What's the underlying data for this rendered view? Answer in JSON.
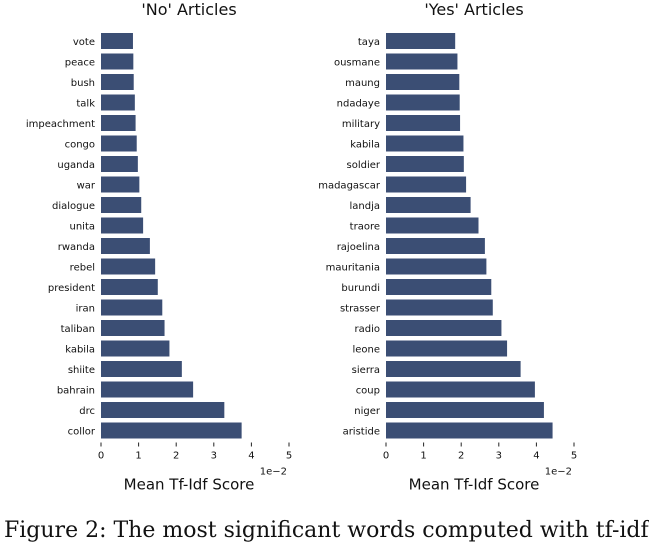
{
  "caption": "Figure 2: The most significant words computed with tf-idf",
  "colors": {
    "bar": "#3b4e74",
    "text": "#111111",
    "axis": "#222222"
  },
  "chart_data": [
    {
      "type": "bar",
      "orientation": "horizontal",
      "title": "'No' Articles",
      "xlabel": "Mean Tf-Idf Score",
      "ylabel": "",
      "scale_note": "1e−2",
      "xlim": [
        0,
        5
      ],
      "xticks": [
        "0",
        "1",
        "2",
        "3",
        "4",
        "5"
      ],
      "categories": [
        "vote",
        "peace",
        "bush",
        "talk",
        "impeachment",
        "congo",
        "uganda",
        "war",
        "dialogue",
        "unita",
        "rwanda",
        "rebel",
        "president",
        "iran",
        "taliban",
        "kabila",
        "shiite",
        "bahrain",
        "drc",
        "collor"
      ],
      "values": [
        0.85,
        0.86,
        0.87,
        0.9,
        0.92,
        0.95,
        0.98,
        1.02,
        1.07,
        1.12,
        1.3,
        1.44,
        1.51,
        1.63,
        1.69,
        1.82,
        2.15,
        2.45,
        3.28,
        3.74
      ]
    },
    {
      "type": "bar",
      "orientation": "horizontal",
      "title": "'Yes' Articles",
      "xlabel": "Mean Tf-Idf Score",
      "ylabel": "",
      "scale_note": "1e−2",
      "xlim": [
        0,
        5
      ],
      "xticks": [
        "0",
        "1",
        "2",
        "3",
        "4",
        "5"
      ],
      "categories": [
        "taya",
        "ousmane",
        "maung",
        "ndadaye",
        "military",
        "kabila",
        "soldier",
        "madagascar",
        "landja",
        "traore",
        "rajoelina",
        "mauritania",
        "burundi",
        "strasser",
        "radio",
        "leone",
        "sierra",
        "coup",
        "niger",
        "aristide"
      ],
      "values": [
        1.84,
        1.9,
        1.95,
        1.96,
        1.97,
        2.06,
        2.07,
        2.13,
        2.25,
        2.46,
        2.63,
        2.67,
        2.8,
        2.84,
        3.07,
        3.22,
        3.58,
        3.96,
        4.2,
        4.43
      ]
    }
  ]
}
